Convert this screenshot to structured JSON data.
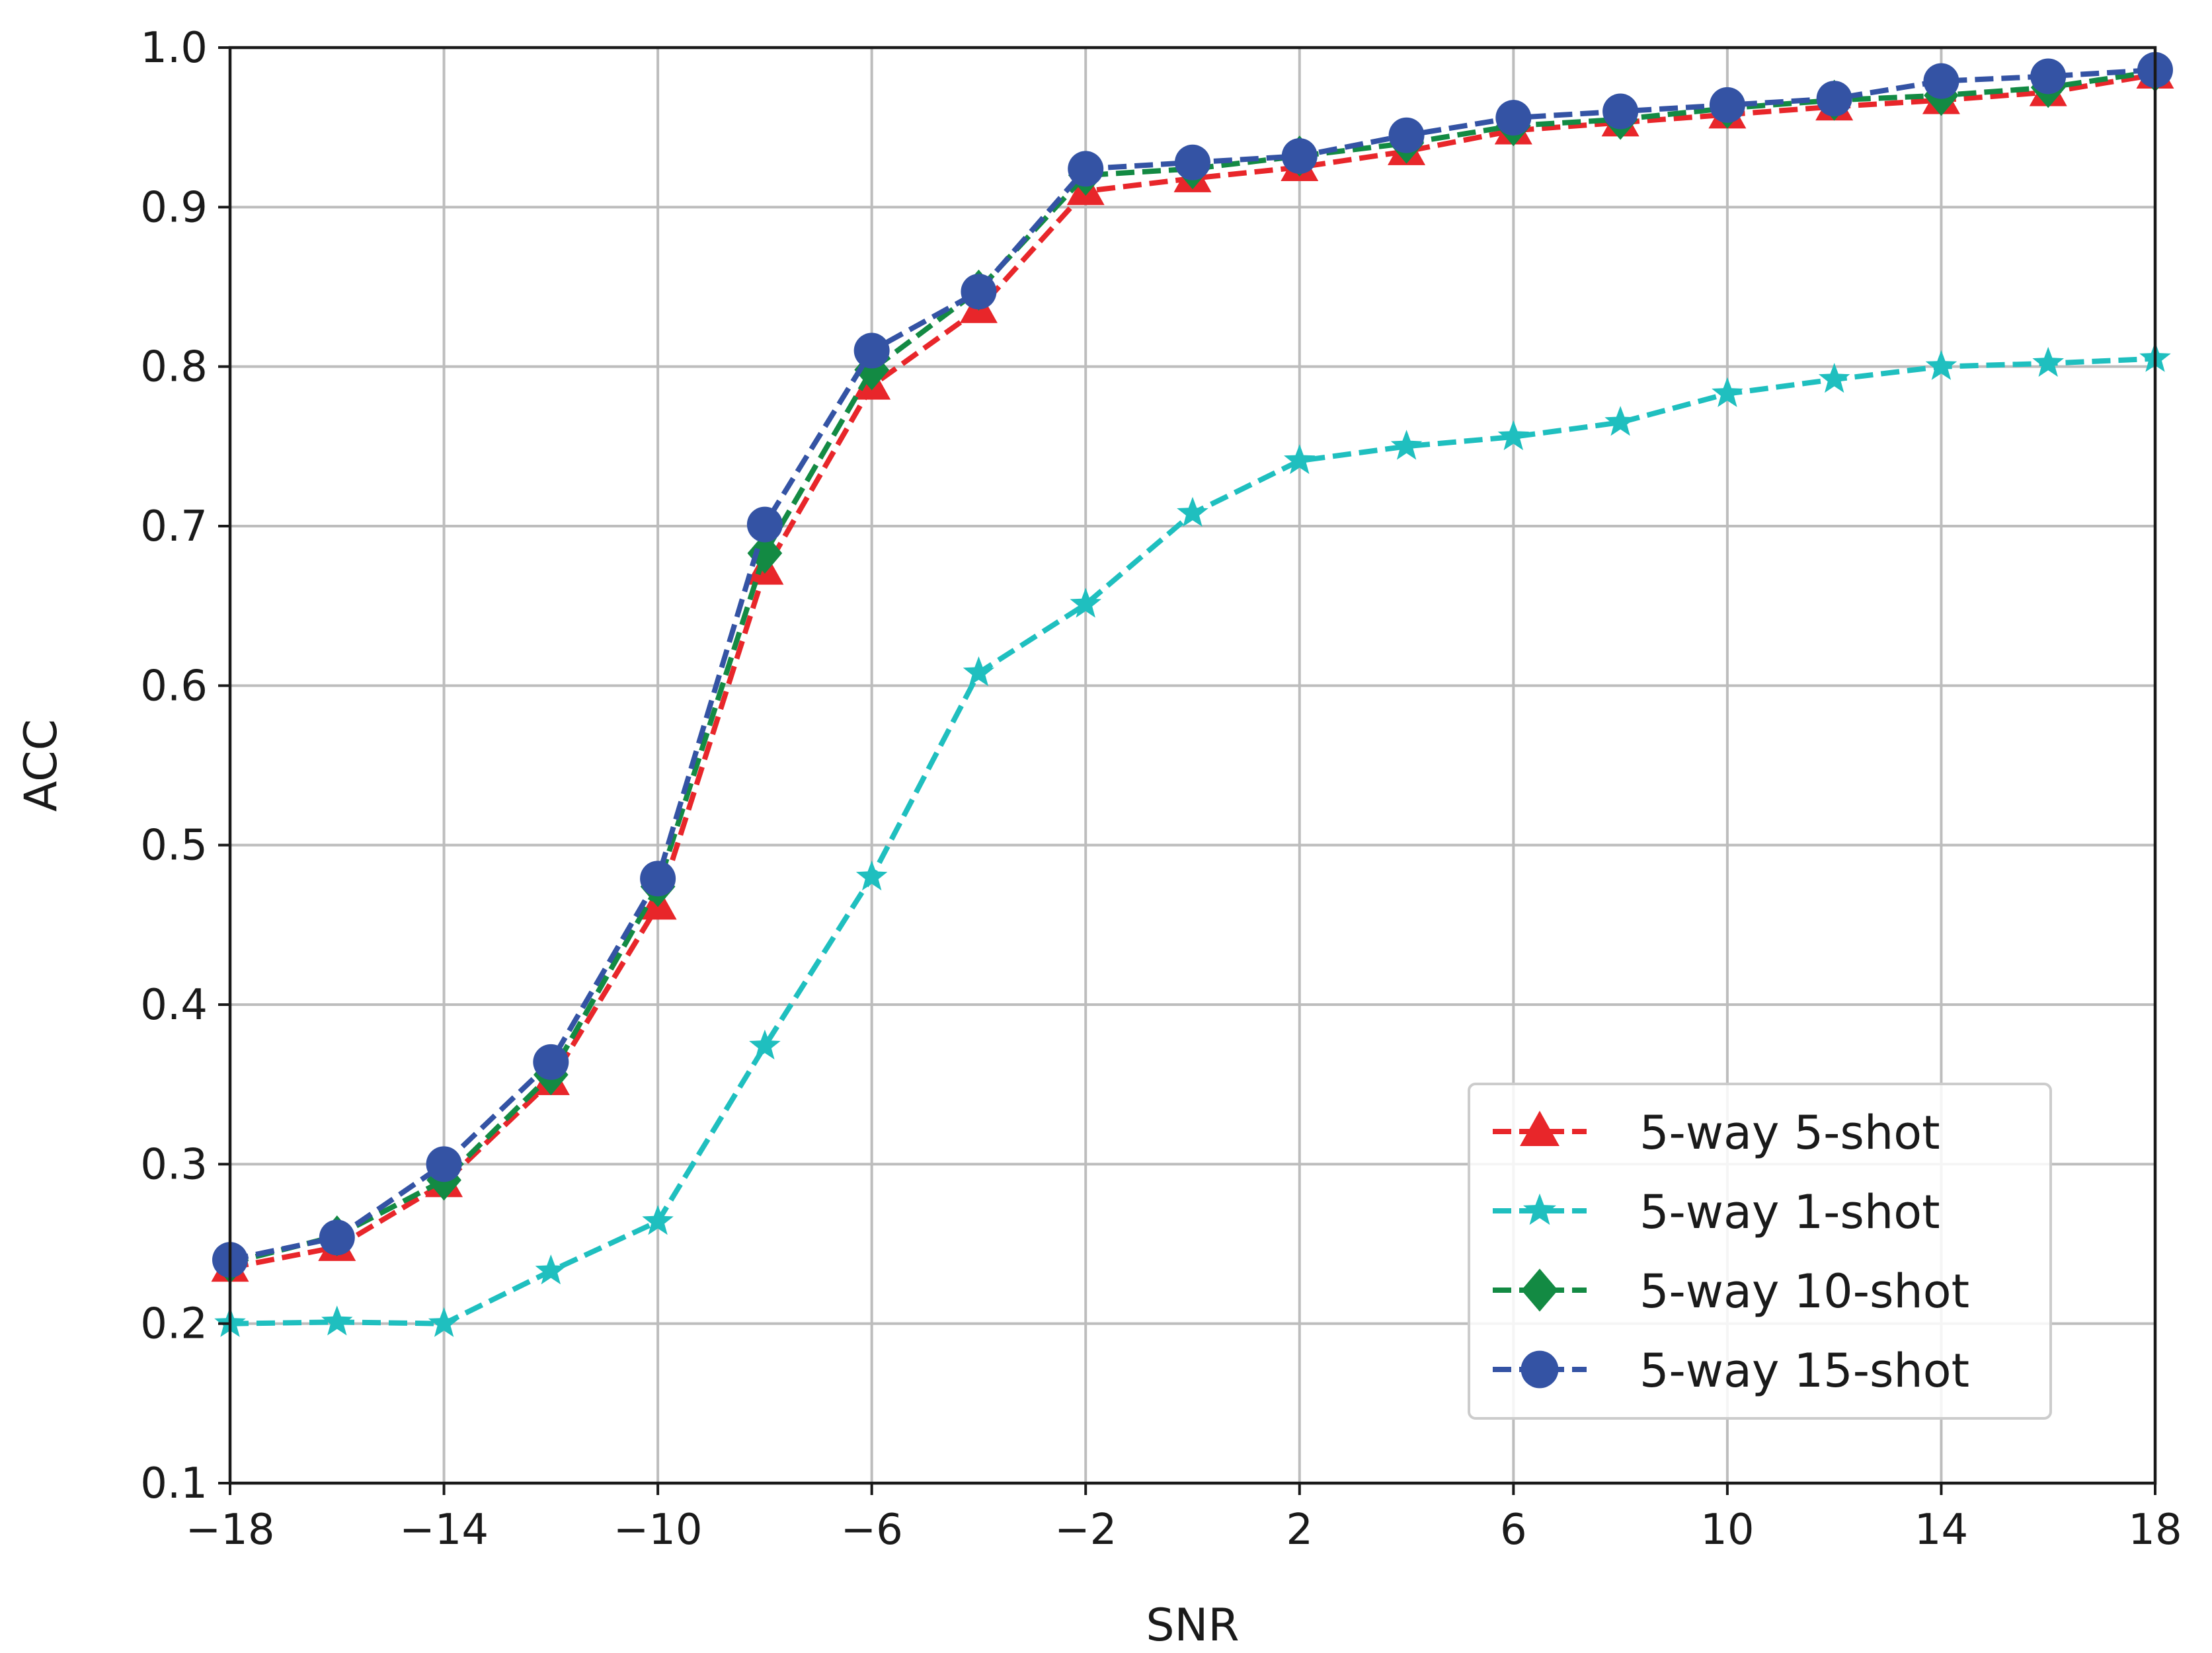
{
  "chart_data": {
    "type": "line",
    "xlabel": "SNR",
    "ylabel": "ACC",
    "xlim": [
      -18,
      18
    ],
    "ylim": [
      0.1,
      1.0
    ],
    "xticks": [
      -18,
      -14,
      -10,
      -6,
      -2,
      2,
      6,
      10,
      14,
      18
    ],
    "xtick_labels": [
      "−18",
      "−14",
      "−10",
      "−6",
      "−2",
      "2",
      "6",
      "10",
      "14",
      "18"
    ],
    "yticks": [
      0.1,
      0.2,
      0.3,
      0.4,
      0.5,
      0.6,
      0.7,
      0.8,
      0.9,
      1.0
    ],
    "ytick_labels": [
      "0.1",
      "0.2",
      "0.3",
      "0.4",
      "0.5",
      "0.6",
      "0.7",
      "0.8",
      "0.9",
      "1.0"
    ],
    "grid": true,
    "legend_position": "lower-right",
    "x": [
      -18,
      -16,
      -14,
      -12,
      -10,
      -8,
      -6,
      -4,
      -2,
      0,
      2,
      4,
      6,
      8,
      10,
      12,
      14,
      16,
      18
    ],
    "series": [
      {
        "name": "5-way 5-shot",
        "color": "#e8262a",
        "marker": "triangle",
        "values": [
          0.235,
          0.248,
          0.288,
          0.352,
          0.462,
          0.672,
          0.788,
          0.836,
          0.91,
          0.918,
          0.925,
          0.935,
          0.948,
          0.953,
          0.958,
          0.963,
          0.967,
          0.972,
          0.983
        ]
      },
      {
        "name": "5-way 1-shot",
        "color": "#1fbfbf",
        "marker": "star",
        "values": [
          0.2,
          0.201,
          0.2,
          0.233,
          0.264,
          0.374,
          0.48,
          0.608,
          0.651,
          0.708,
          0.741,
          0.75,
          0.756,
          0.765,
          0.783,
          0.792,
          0.8,
          0.802,
          0.805
        ]
      },
      {
        "name": "5-way 10-shot",
        "color": "#138a43",
        "marker": "diamond",
        "values": [
          0.238,
          0.255,
          0.29,
          0.356,
          0.474,
          0.683,
          0.798,
          0.848,
          0.92,
          0.924,
          0.932,
          0.94,
          0.951,
          0.955,
          0.962,
          0.967,
          0.97,
          0.975,
          0.985
        ]
      },
      {
        "name": "5-way 15-shot",
        "color": "#3453a4",
        "marker": "circle",
        "values": [
          0.24,
          0.254,
          0.3,
          0.364,
          0.479,
          0.701,
          0.81,
          0.847,
          0.924,
          0.928,
          0.932,
          0.945,
          0.956,
          0.96,
          0.964,
          0.968,
          0.979,
          0.982,
          0.986
        ]
      }
    ]
  }
}
